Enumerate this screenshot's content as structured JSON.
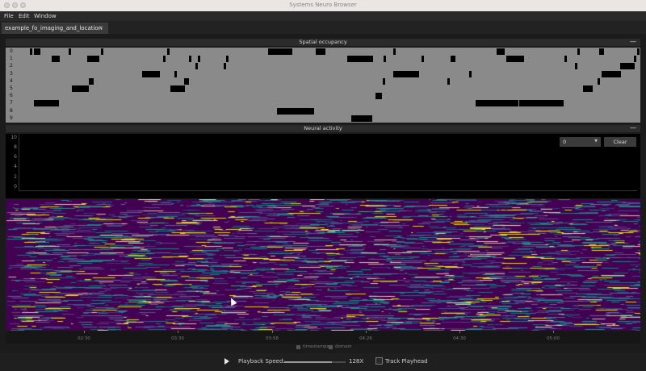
{
  "window": {
    "title": "Systems Neuro Browser"
  },
  "menu": {
    "file": "File",
    "edit": "Edit",
    "window": "Window"
  },
  "tab": {
    "label": "example_fo_imaging_and_location"
  },
  "occupancy": {
    "title": "Spatial occupancy",
    "rows": [
      "0",
      "1",
      "2",
      "3",
      "4",
      "5",
      "6",
      "7",
      "8",
      "9"
    ]
  },
  "neural": {
    "title": "Neural activity",
    "y_ticks": [
      "10",
      "8",
      "6",
      "4",
      "2",
      "0"
    ],
    "select_value": "0",
    "clear_label": "Clear"
  },
  "colors": {
    "heat_low": "#440154",
    "heat_mid": "#21918c",
    "heat_high": "#fde725"
  },
  "time_axis": {
    "ticks": [
      "02:30",
      "03:30",
      "03:58",
      "04:26",
      "04:30",
      "05:00"
    ]
  },
  "legend": {
    "item1": "timestamps",
    "item2": "domain"
  },
  "playback": {
    "label": "Playback Speed:",
    "value": "128X",
    "fraction": 0.78,
    "track_label": "Track Playhead"
  }
}
